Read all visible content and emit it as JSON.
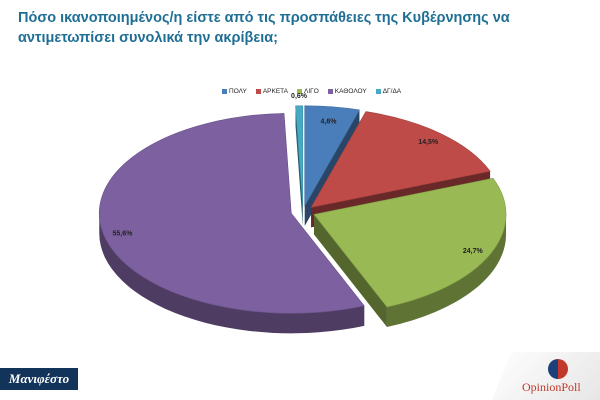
{
  "header": {
    "title": "Πόσο ικανοποιημένος/η είστε από τις προσπάθειες της Κυβέρνησης να αντιμετωπίσει συνολικά την ακρίβεια;"
  },
  "chart_data": {
    "type": "pie",
    "style": "3d-exploded",
    "legend_position": "top",
    "categories": [
      "ΠΟΛΥ",
      "ΑΡΚΕΤΑ",
      "ΛΙΓΟ",
      "ΚΑΘΟΛΟΥ",
      "ΔΓ/ΔΑ"
    ],
    "values": [
      4.6,
      14.5,
      24.7,
      55.6,
      0.6
    ],
    "labels": [
      "4,6%",
      "14,5%",
      "24,7%",
      "55,6%",
      "0,6%"
    ],
    "colors": [
      "#4a7ebb",
      "#be4b48",
      "#98b954",
      "#7d60a0",
      "#46aac5"
    ]
  },
  "footer": {
    "left_logo": "Μανιφέστο",
    "right_logo": "OpinionPoll"
  }
}
